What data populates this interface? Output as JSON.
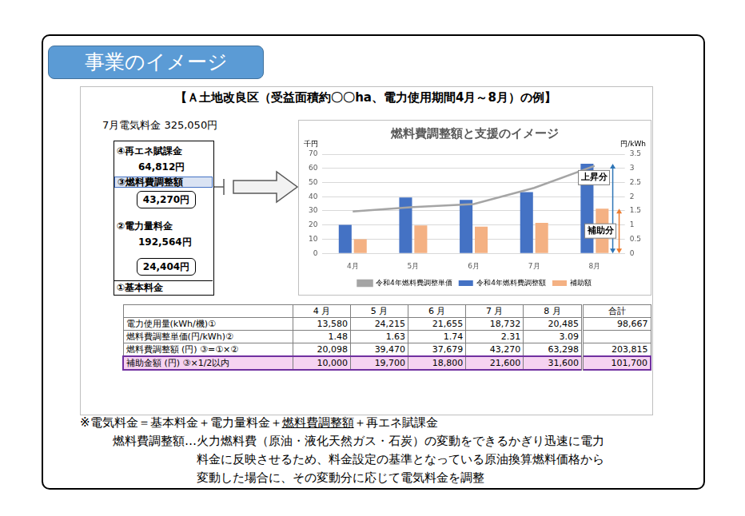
{
  "header": {
    "tab": "事業のイメージ"
  },
  "example_title": "【Ａ土地改良区（受益面積約〇〇ha、電力使用期間4月～8月）の例】",
  "bill": {
    "title": "7月電気料金 325,050円",
    "items": [
      {
        "label": "④再エネ賦課金",
        "amount": "64,812円"
      },
      {
        "label": "③燃料費調整額",
        "amount": "43,270円"
      },
      {
        "label": "②電力量料金",
        "amount": "192,564円"
      },
      {
        "label": "①基本料金",
        "amount": "24,404円"
      }
    ]
  },
  "chart_data": {
    "type": "bar",
    "title": "燃料費調整額と支援のイメージ",
    "y_label": "千円",
    "y2_label": "円/kWh",
    "categories": [
      "4月",
      "5月",
      "6月",
      "7月",
      "8月"
    ],
    "series": [
      {
        "name": "令和4年燃料費調整額",
        "type": "bar",
        "color": "#4472c4",
        "values": [
          20.098,
          39.47,
          37.679,
          43.27,
          63.298
        ]
      },
      {
        "name": "補助額",
        "type": "bar",
        "color": "#f4b183",
        "values": [
          10.0,
          19.7,
          18.8,
          21.6,
          31.6
        ]
      },
      {
        "name": "令和4年燃料費調整単価",
        "type": "line",
        "color": "#a5a5a5",
        "axis": "y2",
        "marker": "none",
        "values": [
          1.48,
          1.63,
          1.74,
          2.31,
          3.09
        ]
      }
    ],
    "ylim": [
      0,
      70
    ],
    "yticks": [
      0,
      10,
      20,
      30,
      40,
      50,
      60,
      70
    ],
    "y2lim": [
      0,
      3.5
    ],
    "y2ticks": [
      0,
      0.5,
      1,
      1.5,
      2,
      2.5,
      3,
      3.5
    ],
    "grid": true,
    "legend": "bottom",
    "annotations": [
      {
        "text": "上昇分",
        "color": "#2e75b6"
      },
      {
        "text": "補助分",
        "color": "#ed7d31"
      }
    ]
  },
  "table": {
    "header": [
      null,
      "4 月",
      "5 月",
      "6 月",
      "7 月",
      "8 月",
      "合計"
    ],
    "rows": [
      [
        "電力使用量(kWh/機)①",
        "13,580",
        "24,215",
        "21,655",
        "18,732",
        "20,485",
        "98,667"
      ],
      [
        "燃料費調整単価(円/kWh)②",
        "1.48",
        "1.63",
        "1.74",
        "2.31",
        "3.09",
        null
      ],
      [
        "燃料費調整額 (円) ③=①×②",
        "20,098",
        "39,470",
        "37,679",
        "43,270",
        "63,298",
        "203,815"
      ],
      [
        "補助金額 (円) ③×1/2以内",
        "10,000",
        "19,700",
        "18,800",
        "21,600",
        "31,600",
        "101,700"
      ]
    ]
  },
  "notes": {
    "formula": {
      "before": "※電気料金＝基本料金＋電力量料金＋",
      "underlined": "燃料費調整額",
      "after": "＋再エネ賦課金"
    },
    "definition": {
      "term": "燃料費調整額…",
      "lines": [
        "火力燃料費（原油・液化天然ガス・石炭）の変動をできるかぎり迅速に電力",
        "料金に反映させるため、料金設定の基準となっている原油換算燃料価格から",
        "変動した場合に、その変動分に応じて電気料金を調整"
      ]
    }
  }
}
